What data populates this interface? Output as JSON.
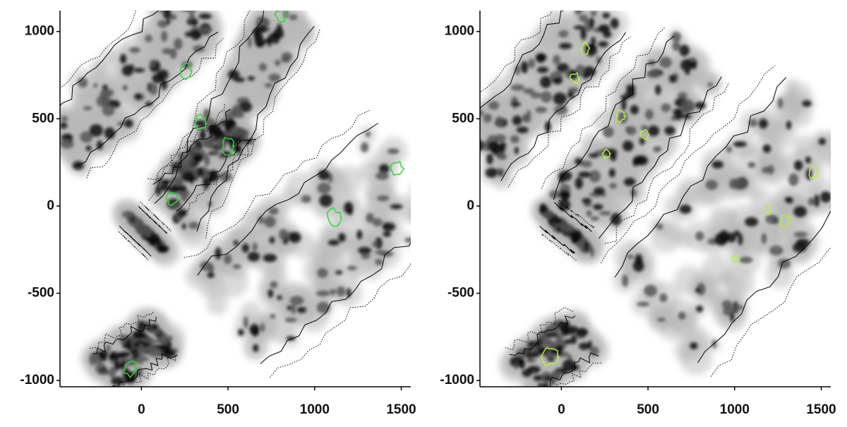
{
  "chart_data": [
    {
      "type": "image",
      "xlim": [
        -470,
        1555
      ],
      "ylim": [
        -1036,
        1120
      ],
      "xticks": [
        0,
        500,
        1000,
        1500
      ],
      "yticks": [
        -1000,
        -500,
        0,
        500,
        1000
      ]
    },
    {
      "type": "image",
      "xlim": [
        -470,
        1555
      ],
      "ylim": [
        -1036,
        1120
      ],
      "xticks": [
        0,
        500,
        1000,
        1500
      ],
      "yticks": [
        -1000,
        -500,
        0,
        500,
        1000
      ]
    }
  ]
}
